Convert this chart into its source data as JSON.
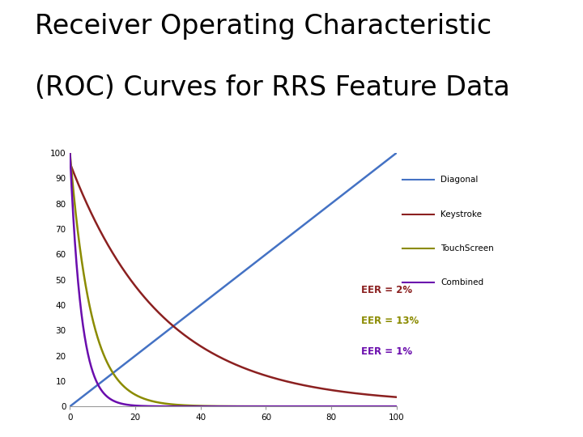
{
  "title_line1": "Receiver Operating Characteristic",
  "title_line2": "(ROC) Curves for RRS Feature Data",
  "title_fontsize": 24,
  "xlim": [
    0,
    100
  ],
  "ylim": [
    0,
    100
  ],
  "xticks": [
    0,
    20,
    40,
    60,
    80,
    100
  ],
  "yticks": [
    0,
    10,
    20,
    30,
    40,
    50,
    60,
    70,
    80,
    90,
    100
  ],
  "diagonal_color": "#4472C4",
  "keystroke_color": "#8B2020",
  "touchscreen_color": "#8B8B00",
  "combined_color": "#6A0DAD",
  "eer_keystroke_text": "EER = 2%",
  "eer_touchscreen_text": "EER = 13%",
  "eer_combined_text": "EER = 1%",
  "eer_keystroke_color": "#8B2020",
  "eer_touchscreen_color": "#8B8B00",
  "eer_combined_color": "#6A0DAD",
  "legend_labels": [
    "Diagonal",
    "Keystroke",
    "TouchScreen",
    "Combined"
  ],
  "background_color": "#FFFFFF",
  "keystroke_decay": 28,
  "touchscreen_decay": 6.5,
  "combined_decay": 3.5,
  "keystroke_start": 95,
  "keystroke_floor": 1
}
